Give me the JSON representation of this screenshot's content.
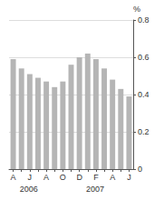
{
  "chart_data": {
    "type": "bar",
    "ylabel": "%",
    "categories": [
      "A",
      null,
      "J",
      null,
      "A",
      null,
      "O",
      null,
      "D",
      null,
      "F",
      null,
      "A",
      null,
      "J"
    ],
    "values": [
      0.59,
      0.54,
      0.51,
      0.49,
      0.47,
      0.44,
      0.47,
      0.56,
      0.6,
      0.62,
      0.59,
      0.54,
      0.48,
      0.43,
      0.39
    ],
    "color": "#b5b5b5",
    "ylim": [
      0,
      0.8
    ],
    "yticks": [
      0,
      0.2,
      0.4,
      0.6,
      0.8
    ],
    "grid": true,
    "annotations": [
      {
        "text": "2006",
        "x": 2
      },
      {
        "text": "2007",
        "x": 10
      }
    ]
  }
}
